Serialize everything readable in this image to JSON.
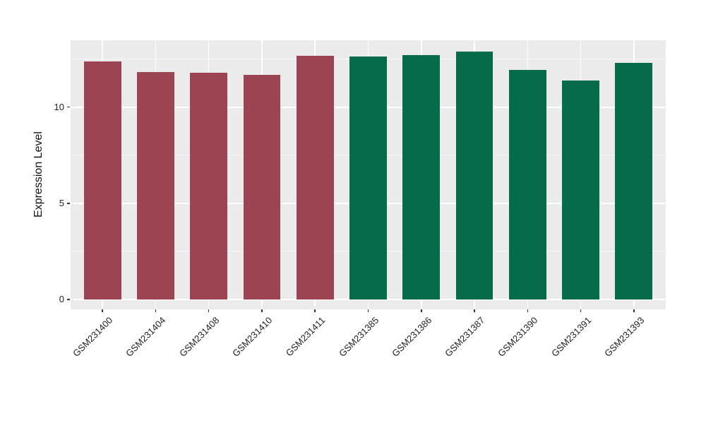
{
  "chart_data": {
    "type": "bar",
    "title": "",
    "xlabel": "",
    "ylabel": "Expression Level",
    "categories": [
      "GSM231400",
      "GSM231404",
      "GSM231408",
      "GSM231410",
      "GSM231411",
      "GSM231385",
      "GSM231386",
      "GSM231387",
      "GSM231390",
      "GSM231391",
      "GSM231393"
    ],
    "values": [
      12.38,
      11.83,
      11.78,
      11.68,
      12.67,
      12.64,
      12.7,
      12.87,
      11.93,
      11.36,
      12.3
    ],
    "bar_colors": [
      "#9D4452",
      "#9D4452",
      "#9D4452",
      "#9D4452",
      "#9D4452",
      "#056B4B",
      "#056B4B",
      "#056B4B",
      "#056B4B",
      "#056B4B",
      "#056B4B"
    ],
    "group_colors": {
      "red_group": "#9D4452",
      "green_group": "#056B4B"
    },
    "ylim": [
      0,
      13.47
    ],
    "yticks": [
      0,
      5,
      10
    ],
    "ytick_labels": [
      "0",
      "5",
      "10"
    ],
    "yminor": [
      2.5,
      7.5,
      12.5
    ],
    "grid": "on",
    "legend_position": "none",
    "panel_background": "#EBEBEB",
    "grid_color": "#FFFFFF",
    "axis_text_color": "#1F1F1F"
  }
}
